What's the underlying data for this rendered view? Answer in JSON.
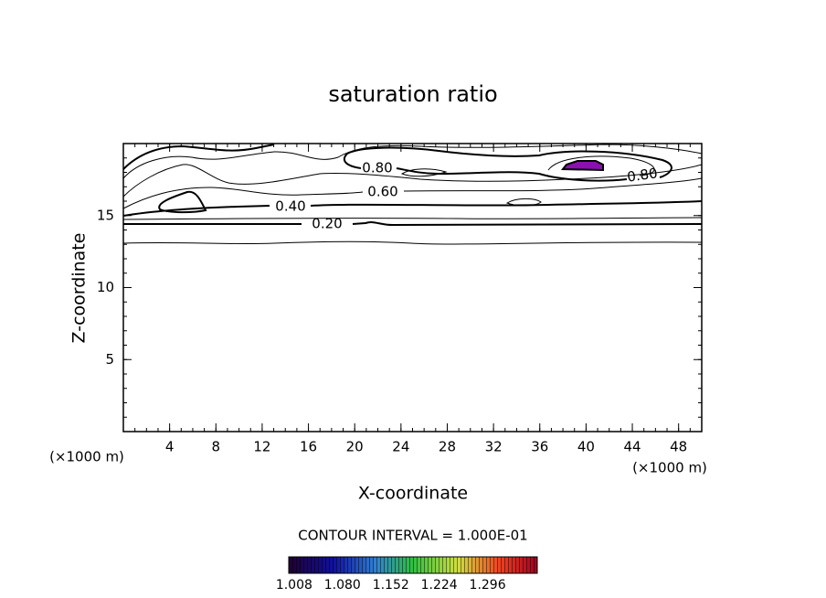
{
  "chart_data": {
    "type": "contour",
    "title": "saturation ratio",
    "x_label": "X-coordinate",
    "y_label": "Z-coordinate",
    "x_unit": "(×1000 m)",
    "xlim": [
      0,
      50
    ],
    "xticks": [
      4,
      8,
      12,
      16,
      20,
      24,
      28,
      32,
      36,
      40,
      44,
      48
    ],
    "ylim": [
      0,
      20
    ],
    "yticks": [
      5,
      10,
      15
    ],
    "contour_levels": [
      {
        "value": 0.8,
        "label": "0.80"
      },
      {
        "value": 0.6,
        "label": "0.60"
      },
      {
        "value": 0.4,
        "label": "0.40"
      },
      {
        "value": 0.2,
        "label": "0.20"
      },
      {
        "value": 0.8,
        "label": "0.80"
      }
    ],
    "contour_interval_text": "CONTOUR INTERVAL = 1.000E-01",
    "colorbar": {
      "lim": [
        1.0,
        1.37
      ],
      "ticks": [
        1.008,
        {
          "value": 1.08,
          "label": "1.080"
        },
        1.152,
        1.224,
        1.296
      ]
    }
  }
}
